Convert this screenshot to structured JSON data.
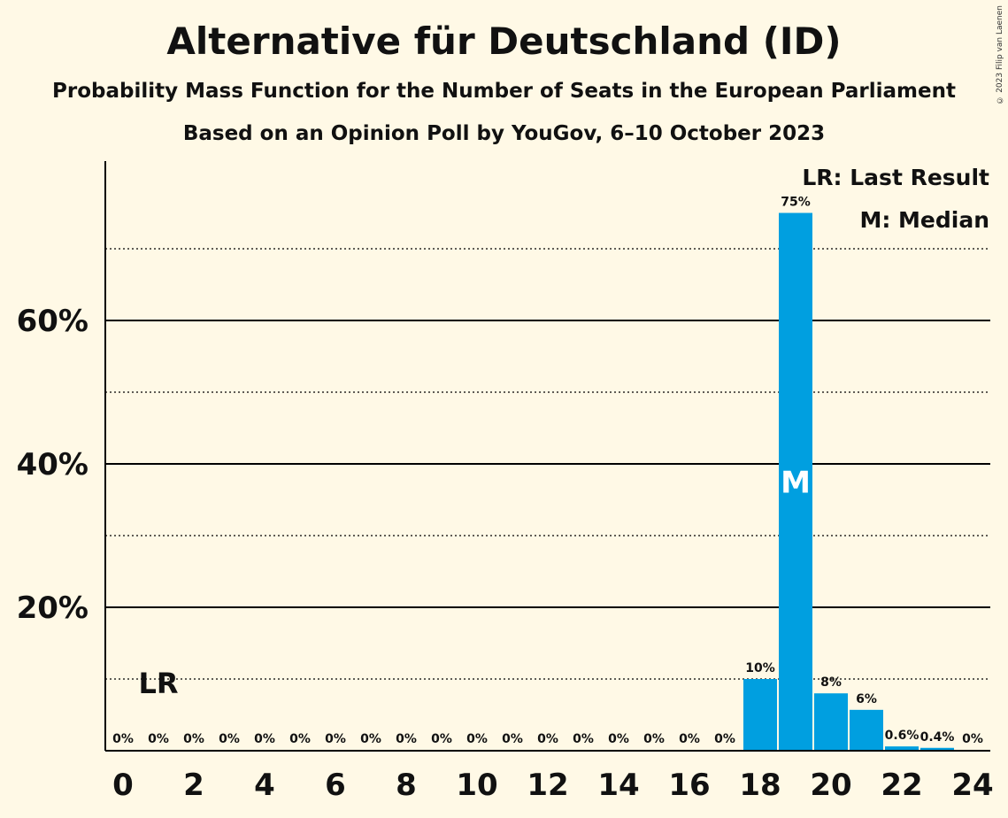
{
  "header": {
    "title": "Alternative für Deutschland (ID)",
    "subtitle": "Probability Mass Function for the Number of Seats in the European Parliament",
    "subtitle2": "Based on an Opinion Poll by YouGov, 6–10 October 2023",
    "copyright": "© 2023 Filip van Laenen"
  },
  "chart_data": {
    "type": "bar",
    "categories": [
      0,
      1,
      2,
      3,
      4,
      5,
      6,
      7,
      8,
      9,
      10,
      11,
      12,
      13,
      14,
      15,
      16,
      17,
      18,
      19,
      20,
      21,
      22,
      23,
      24
    ],
    "values": [
      0,
      0,
      0,
      0,
      0,
      0,
      0,
      0,
      0,
      0,
      0,
      0,
      0,
      0,
      0,
      0,
      0,
      0,
      10,
      75,
      8,
      5.7,
      0.6,
      0.4,
      0
    ],
    "value_labels": [
      "0%",
      "0%",
      "0%",
      "0%",
      "0%",
      "0%",
      "0%",
      "0%",
      "0%",
      "0%",
      "0%",
      "0%",
      "0%",
      "0%",
      "0%",
      "0%",
      "0%",
      "0%",
      "10%",
      "75%",
      "8%",
      "6%",
      "0.6%",
      "0.4%",
      "0%"
    ],
    "x_tick_labels": [
      "0",
      "2",
      "4",
      "6",
      "8",
      "10",
      "12",
      "14",
      "16",
      "18",
      "20",
      "22",
      "24"
    ],
    "y_tick_labels": [
      "20%",
      "40%",
      "60%"
    ],
    "y_ticks": [
      20,
      40,
      60
    ],
    "y_minor_gridlines": [
      10,
      30,
      50,
      70
    ],
    "ylim": [
      0,
      82
    ],
    "bar_color": "#009fe0",
    "last_result_seat": 1,
    "last_result_marker": "LR",
    "median_seat": 19,
    "median_marker": "M",
    "legend": {
      "position": "top-right",
      "items": [
        "LR: Last Result",
        "M: Median"
      ]
    }
  }
}
